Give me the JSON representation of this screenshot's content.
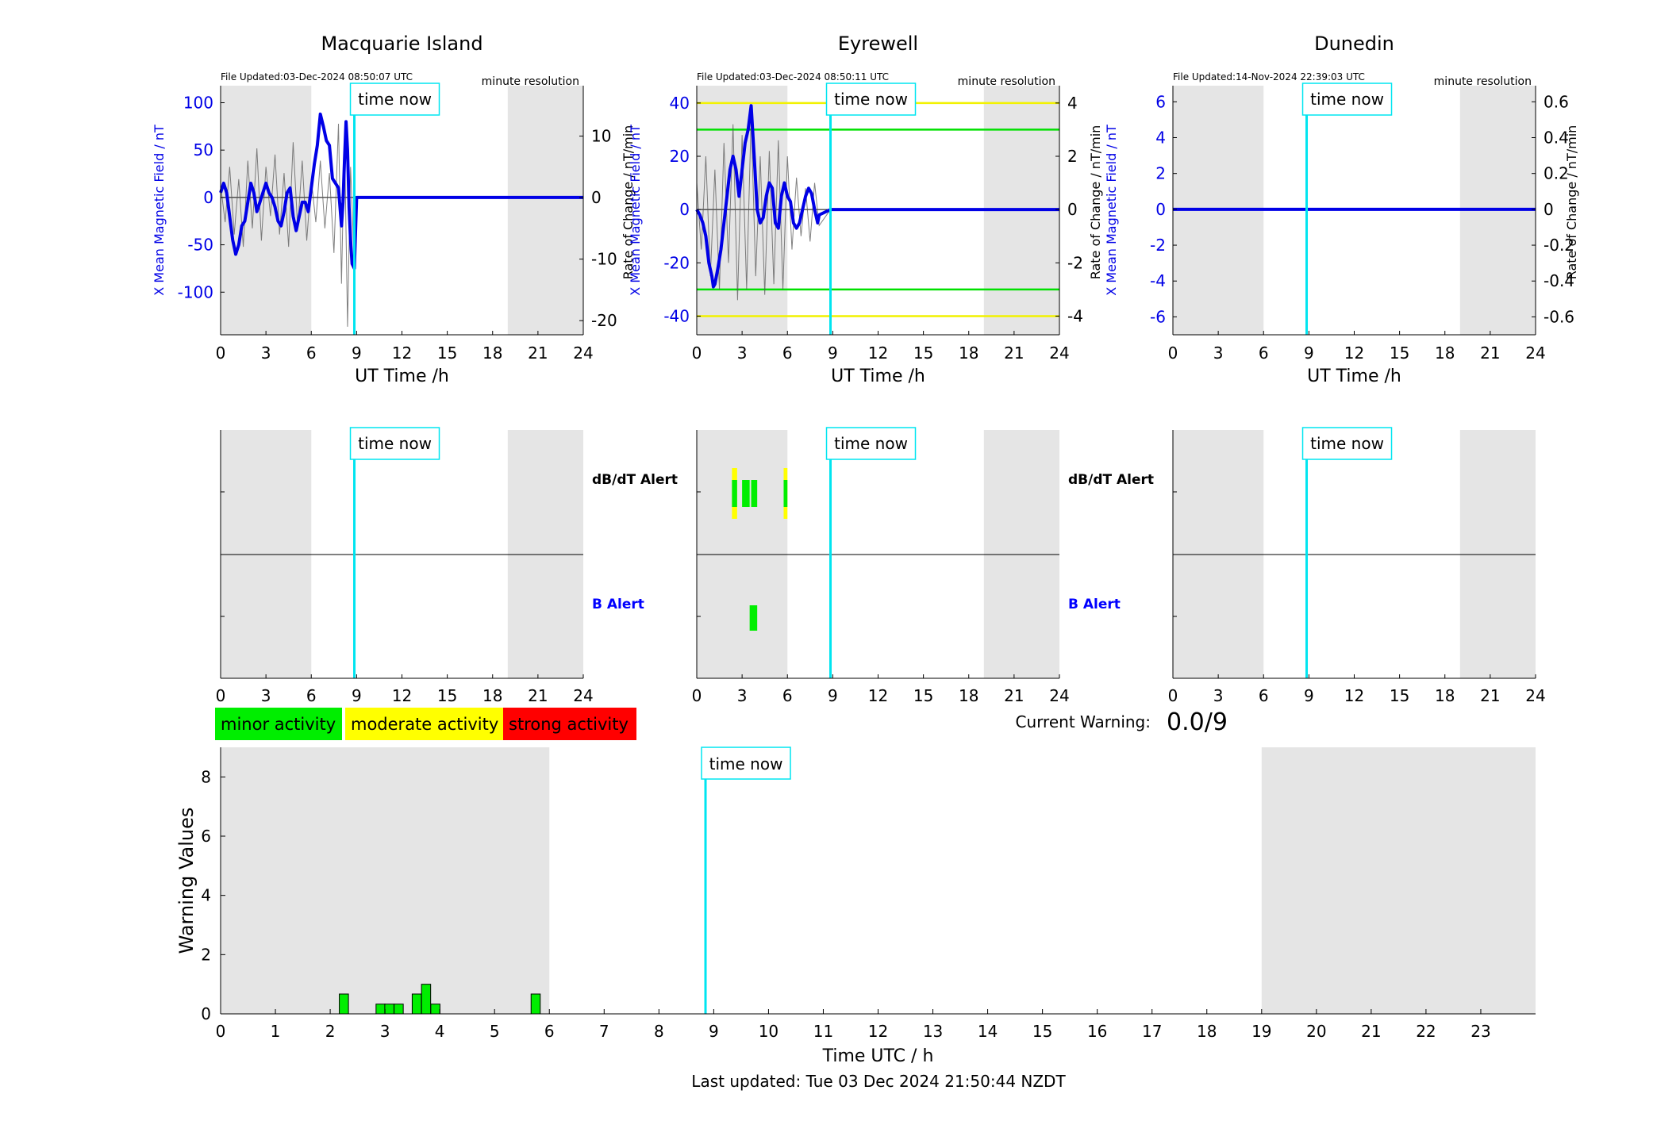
{
  "colors": {
    "shade": "#e5e5e5",
    "time_now": "#00e5f0",
    "field": "#0000e6",
    "rate": "#555555",
    "alert_green": "#00ee00",
    "alert_yellow": "#ffff00",
    "alert_red": "#ff0000",
    "b_alert_label": "#0000ff"
  },
  "time_now_label": "time now",
  "time_now_h": 8.85,
  "shade_ranges_h": [
    [
      0,
      6
    ],
    [
      19,
      24
    ]
  ],
  "stations": [
    {
      "name": "Macquarie Island",
      "file_updated": "File Updated:03-Dec-2024 08:50:07 UTC",
      "resolution": "minute resolution"
    },
    {
      "name": "Eyrewell",
      "file_updated": "File Updated:03-Dec-2024 08:50:11 UTC",
      "resolution": "minute resolution"
    },
    {
      "name": "Dunedin",
      "file_updated": "File Updated:14-Nov-2024 22:39:03 UTC",
      "resolution": "minute resolution"
    }
  ],
  "alert_labels": {
    "dbdt": "dB/dT Alert",
    "b": "B Alert"
  },
  "legend": {
    "minor": "minor activity",
    "moderate": "moderate activity",
    "strong": "strong activity"
  },
  "current_warning": {
    "label": "Current Warning:",
    "value": "0.0/9"
  },
  "footer": "Last updated: Tue 03 Dec 2024 21:50:44 NZDT",
  "chart_data": [
    {
      "type": "line",
      "title": "Macquarie Island",
      "xlabel": "UT Time /h",
      "ylabel": "X Mean Magnetic Field / nT",
      "ylabel_right": "Rate of Change / nT/min",
      "xlim": [
        0,
        24
      ],
      "ylim": [
        -145,
        118
      ],
      "ylim_right": [
        -22.3,
        18.2
      ],
      "x_ticks": [
        0,
        3,
        6,
        9,
        12,
        15,
        18,
        21,
        24
      ],
      "y_ticks": [
        -100,
        -50,
        0,
        50,
        100
      ],
      "y_ticks_right": [
        -20,
        -10,
        0,
        10
      ],
      "series": [
        {
          "role": "field",
          "x": [
            0,
            0.2,
            0.4,
            0.6,
            0.8,
            1.0,
            1.2,
            1.4,
            1.6,
            1.8,
            2.0,
            2.2,
            2.4,
            2.6,
            2.8,
            3.0,
            3.2,
            3.4,
            3.6,
            3.8,
            4.0,
            4.2,
            4.4,
            4.6,
            4.8,
            5.0,
            5.2,
            5.4,
            5.6,
            5.8,
            6.0,
            6.2,
            6.4,
            6.6,
            6.8,
            7.0,
            7.2,
            7.4,
            7.6,
            7.8,
            8.0,
            8.1,
            8.2,
            8.3,
            8.4,
            8.5,
            8.6,
            8.7,
            8.85,
            9.0,
            24
          ],
          "y": [
            5,
            15,
            5,
            -20,
            -45,
            -60,
            -50,
            -30,
            -25,
            -5,
            15,
            5,
            -15,
            -5,
            5,
            15,
            5,
            0,
            -10,
            -25,
            -30,
            -15,
            5,
            10,
            -20,
            -35,
            -20,
            -5,
            -5,
            -15,
            10,
            35,
            55,
            88,
            75,
            60,
            55,
            20,
            15,
            10,
            -30,
            -5,
            40,
            80,
            50,
            -10,
            -45,
            -70,
            -75,
            0,
            0
          ]
        },
        {
          "role": "rate",
          "x": [
            0,
            0.3,
            0.6,
            0.9,
            1.2,
            1.5,
            1.8,
            2.1,
            2.4,
            2.7,
            3.0,
            3.3,
            3.6,
            3.9,
            4.2,
            4.5,
            4.8,
            5.1,
            5.4,
            5.7,
            6.0,
            6.3,
            6.6,
            6.9,
            7.2,
            7.5,
            7.8,
            8.0,
            8.2,
            8.4,
            8.6,
            8.8,
            9.0,
            24
          ],
          "y": [
            2,
            -4,
            5,
            -6,
            3,
            -8,
            6,
            -5,
            8,
            -7,
            5,
            -3,
            7,
            -6,
            4,
            -8,
            9,
            -5,
            6,
            -7,
            3,
            -4,
            6,
            -5,
            4,
            -9,
            12,
            -14,
            10,
            -21,
            5,
            -8,
            0,
            0
          ]
        }
      ]
    },
    {
      "type": "line",
      "title": "Eyrewell",
      "xlabel": "UT Time /h",
      "ylabel": "X Mean Magnetic Field / nT",
      "ylabel_right": "Rate of Change / nT/min",
      "xlim": [
        0,
        24
      ],
      "ylim": [
        -47,
        46.5
      ],
      "ylim_right": [
        -4.7,
        4.65
      ],
      "x_ticks": [
        0,
        3,
        6,
        9,
        12,
        15,
        18,
        21,
        24
      ],
      "y_ticks": [
        -40,
        -20,
        0,
        20,
        40
      ],
      "y_ticks_right": [
        -4,
        -2,
        0,
        2,
        4
      ],
      "threshold_lines": [
        {
          "value": 40,
          "color": "yellow"
        },
        {
          "value": 30,
          "color": "green"
        },
        {
          "value": -30,
          "color": "green"
        },
        {
          "value": -40,
          "color": "yellow"
        }
      ],
      "series": [
        {
          "role": "field",
          "x": [
            0,
            0.2,
            0.4,
            0.6,
            0.8,
            1.0,
            1.1,
            1.2,
            1.4,
            1.6,
            1.8,
            2.0,
            2.2,
            2.4,
            2.6,
            2.8,
            3.0,
            3.2,
            3.4,
            3.6,
            3.8,
            4.0,
            4.2,
            4.4,
            4.6,
            4.8,
            5.0,
            5.2,
            5.4,
            5.6,
            5.8,
            6.0,
            6.2,
            6.4,
            6.6,
            6.8,
            7.0,
            7.2,
            7.4,
            7.6,
            7.8,
            8.0,
            8.1,
            8.85,
            24
          ],
          "y": [
            0,
            -2,
            -5,
            -10,
            -20,
            -25,
            -29,
            -28,
            -22,
            -15,
            -5,
            5,
            15,
            20,
            15,
            5,
            15,
            25,
            30,
            39,
            20,
            0,
            -5,
            -3,
            5,
            10,
            8,
            -5,
            -7,
            5,
            10,
            5,
            3,
            -5,
            -7,
            -5,
            0,
            5,
            8,
            6,
            0,
            -5,
            -2,
            0,
            0
          ]
        },
        {
          "role": "rate",
          "x": [
            0,
            0.3,
            0.6,
            0.9,
            1.2,
            1.5,
            1.8,
            2.1,
            2.4,
            2.7,
            3.0,
            3.3,
            3.6,
            3.9,
            4.2,
            4.5,
            4.8,
            5.1,
            5.4,
            5.7,
            6.0,
            6.3,
            6.6,
            6.9,
            7.2,
            7.5,
            7.8,
            8.1,
            8.85,
            24
          ],
          "y": [
            1,
            -1.5,
            2,
            -2.5,
            1.5,
            -3,
            2.5,
            -2,
            3.2,
            -3.4,
            2.8,
            -3,
            3.5,
            -2.5,
            2,
            -3.2,
            2.2,
            -2.8,
            2.6,
            -3,
            2,
            -1.5,
            1.2,
            -1,
            0.8,
            -1.2,
            1,
            -0.6,
            0,
            0
          ]
        }
      ]
    },
    {
      "type": "line",
      "title": "Dunedin",
      "xlabel": "UT Time /h",
      "ylabel": "X Mean Magnetic Field / nT",
      "ylabel_right": "Rate of Change / nT/min",
      "xlim": [
        0,
        24
      ],
      "ylim": [
        -7,
        6.9
      ],
      "ylim_right": [
        -0.7,
        0.69
      ],
      "x_ticks": [
        0,
        3,
        6,
        9,
        12,
        15,
        18,
        21,
        24
      ],
      "y_ticks": [
        -6,
        -4,
        -2,
        0,
        2,
        4,
        6
      ],
      "y_ticks_right": [
        -0.6,
        -0.4,
        -0.2,
        0,
        0.2,
        0.4,
        0.6
      ],
      "series": [
        {
          "role": "field",
          "x": [
            0,
            24
          ],
          "y": [
            0,
            0
          ]
        },
        {
          "role": "rate",
          "x": [
            0,
            24
          ],
          "y": [
            0,
            0
          ]
        }
      ]
    },
    {
      "type": "bar",
      "title": "",
      "xlabel": "Time UTC / h",
      "ylabel": "Warning Values",
      "xlim": [
        0,
        24
      ],
      "ylim": [
        0,
        9
      ],
      "x_ticks": [
        0,
        1,
        2,
        3,
        4,
        5,
        6,
        7,
        8,
        9,
        10,
        11,
        12,
        13,
        14,
        15,
        16,
        17,
        18,
        19,
        20,
        21,
        22,
        23
      ],
      "y_ticks": [
        0,
        2,
        4,
        6,
        8
      ],
      "bar_width_h": 0.167,
      "x": [
        2.25,
        2.92,
        3.08,
        3.25,
        3.58,
        3.75,
        3.92,
        5.75
      ],
      "values": [
        0.67,
        0.33,
        0.33,
        0.33,
        0.67,
        1.0,
        0.33,
        0.67
      ]
    }
  ],
  "alert_data": [
    {
      "station": "Macquarie Island",
      "dbdt": [],
      "b": []
    },
    {
      "station": "Eyrewell",
      "dbdt": [
        {
          "start": 2.33,
          "end": 2.67,
          "level": "minor",
          "edge": "moderate"
        },
        {
          "start": 3.0,
          "end": 3.5,
          "level": "minor"
        },
        {
          "start": 3.6,
          "end": 4.0,
          "level": "minor"
        },
        {
          "start": 5.75,
          "end": 6.0,
          "level": "minor",
          "edge": "moderate"
        }
      ],
      "b": [
        {
          "start": 3.5,
          "end": 4.0,
          "level": "minor"
        }
      ]
    },
    {
      "station": "Dunedin",
      "dbdt": [],
      "b": []
    }
  ]
}
